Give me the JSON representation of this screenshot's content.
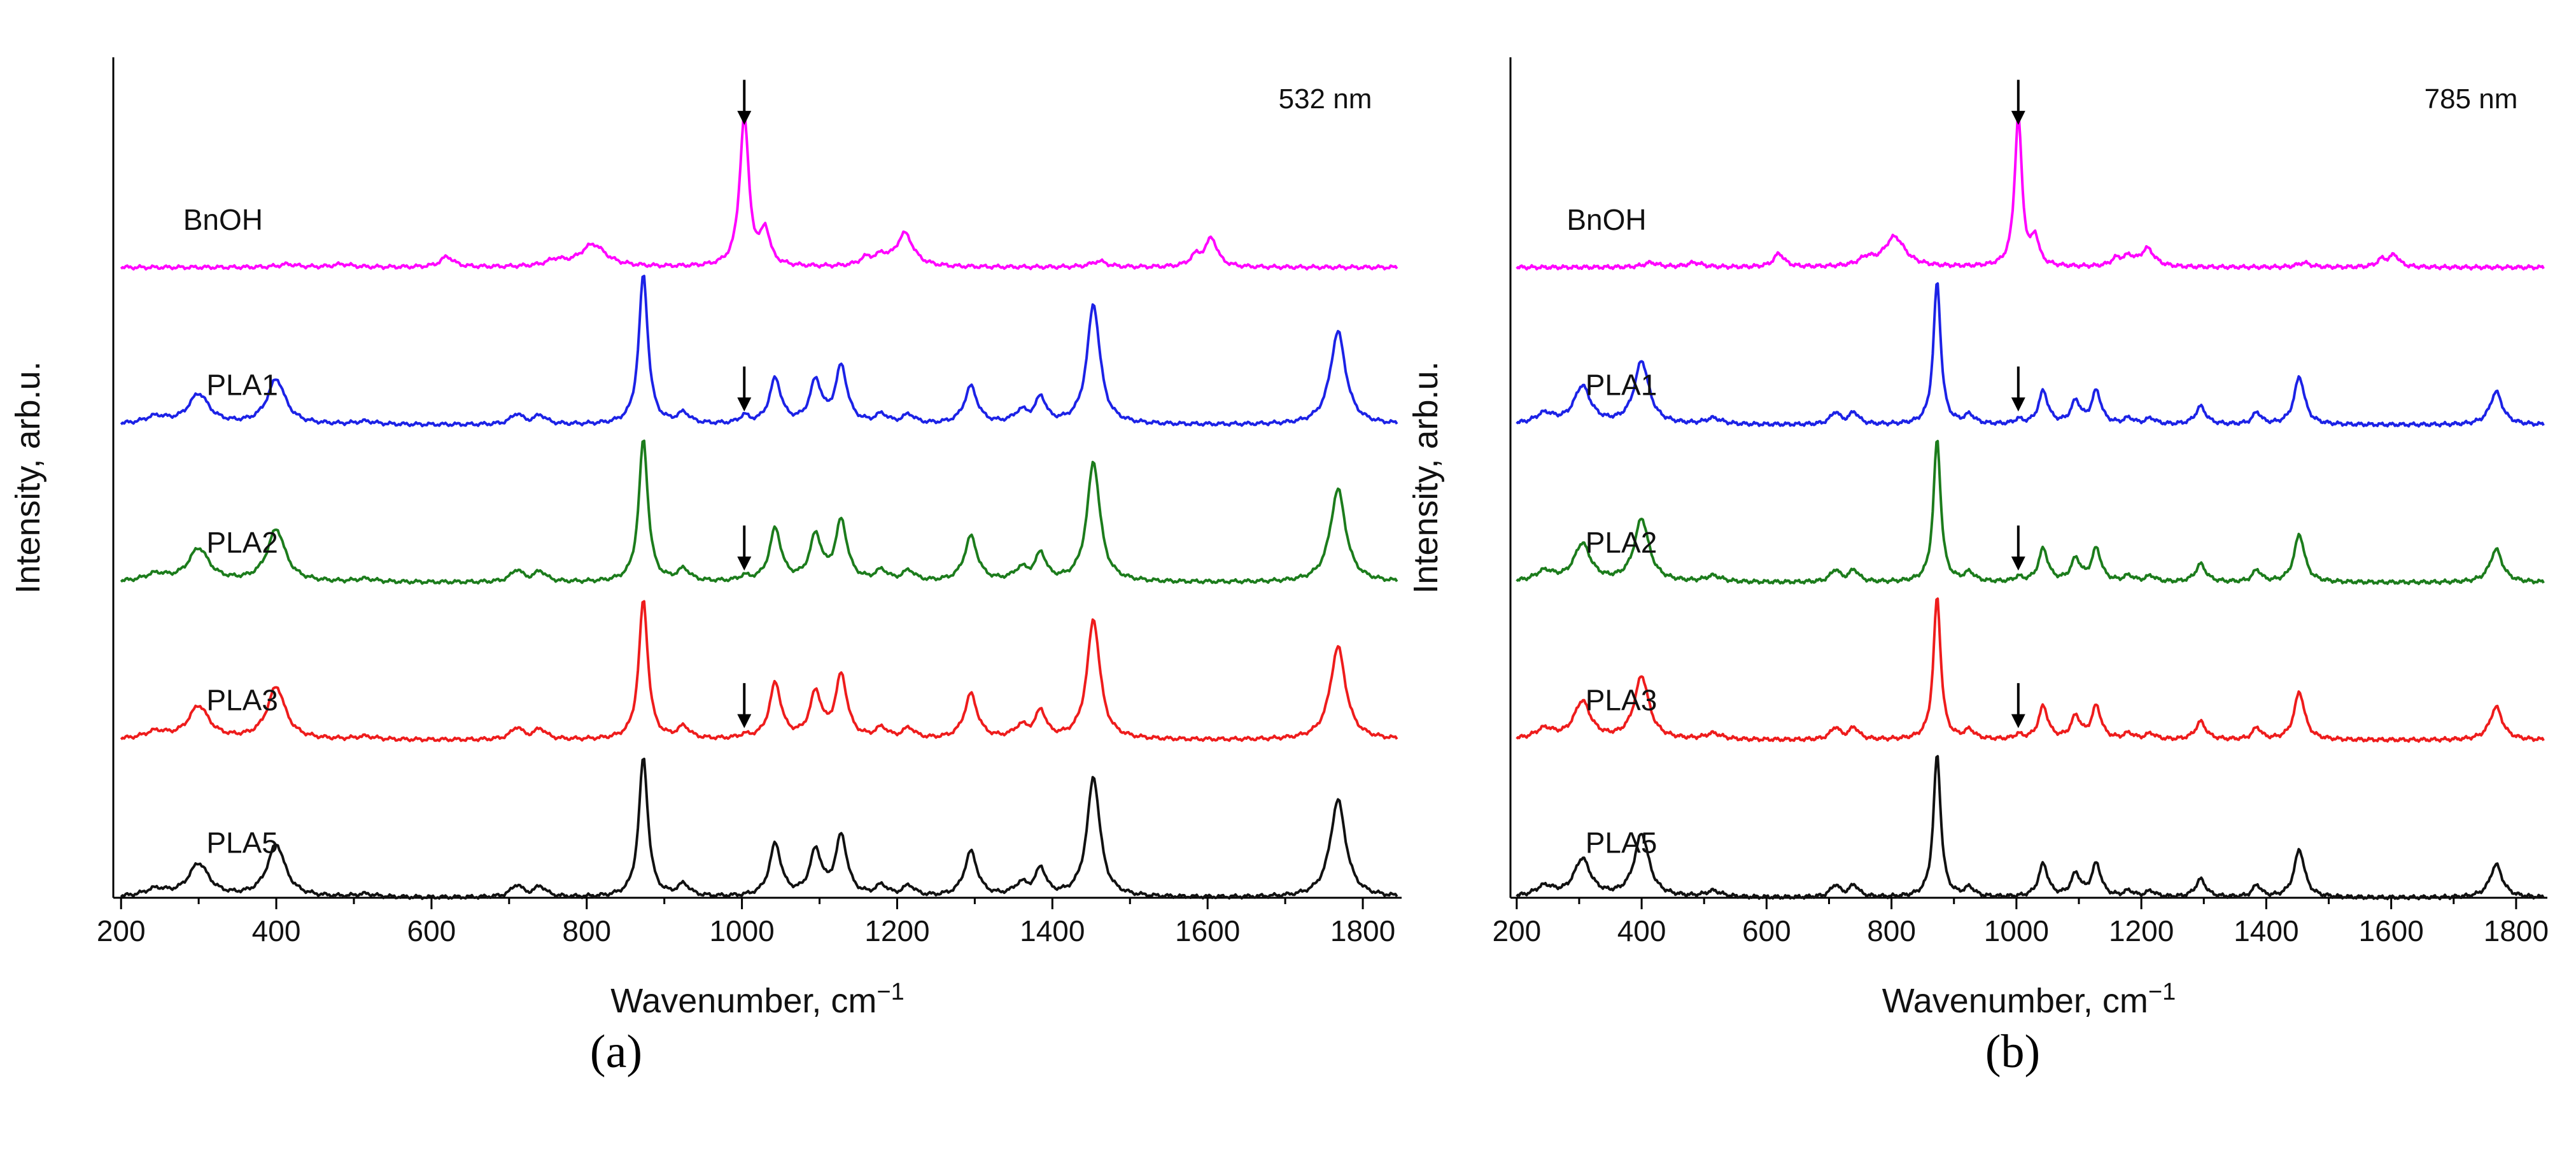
{
  "chart_data": [
    {
      "type": "line",
      "panel": "a",
      "caption": "(a)",
      "annotation": "532 nm",
      "xlabel": "Wavenumber, cm",
      "xlabel_sup": "−1",
      "ylabel": "Intensity, arb.u.",
      "xlim": [
        190,
        1850
      ],
      "ylim": [
        0,
        5.6
      ],
      "xticks": [
        200,
        400,
        600,
        800,
        1000,
        1200,
        1400,
        1600,
        1800
      ],
      "yticks_labeled": false,
      "arrows_at": 1003,
      "series": [
        {
          "name": "BnOH",
          "color": "#ff00ff",
          "offset": 4.2,
          "label_x": 280,
          "label_y": 4.45,
          "arrow": {
            "x": 1003,
            "top": 5.45,
            "bottom": 5.15
          },
          "peaks": [
            [
              415,
              0.02,
              14
            ],
            [
              485,
              0.02,
              14
            ],
            [
              620,
              0.07,
              10
            ],
            [
              760,
              0.04,
              14
            ],
            [
              808,
              0.15,
              20
            ],
            [
              1003,
              1.0,
              7
            ],
            [
              1030,
              0.23,
              7
            ],
            [
              1160,
              0.05,
              10
            ],
            [
              1180,
              0.06,
              10
            ],
            [
              1210,
              0.22,
              13
            ],
            [
              1460,
              0.04,
              12
            ],
            [
              1585,
              0.07,
              9
            ],
            [
              1605,
              0.19,
              9
            ]
          ]
        },
        {
          "name": "PLA1",
          "color": "#1c22e6",
          "offset": 3.15,
          "label_x": 310,
          "label_y": 3.35,
          "arrow": {
            "x": 1003,
            "top": 3.54,
            "bottom": 3.24
          },
          "peaks": [
            [
              245,
              0.05,
              18
            ],
            [
              300,
              0.2,
              16
            ],
            [
              400,
              0.3,
              14
            ],
            [
              515,
              0.02,
              15
            ],
            [
              710,
              0.07,
              9
            ],
            [
              740,
              0.06,
              9
            ],
            [
              873,
              1.0,
              7
            ],
            [
              925,
              0.07,
              9
            ],
            [
              1003,
              0.05,
              7
            ],
            [
              1043,
              0.3,
              9
            ],
            [
              1095,
              0.28,
              9
            ],
            [
              1128,
              0.38,
              9
            ],
            [
              1180,
              0.06,
              9
            ],
            [
              1215,
              0.06,
              9
            ],
            [
              1295,
              0.25,
              10
            ],
            [
              1360,
              0.08,
              11
            ],
            [
              1385,
              0.17,
              8
            ],
            [
              1453,
              0.8,
              10
            ],
            [
              1768,
              0.62,
              12
            ]
          ]
        },
        {
          "name": "PLA2",
          "color": "#1c7c1c",
          "offset": 2.1,
          "label_x": 310,
          "label_y": 2.3,
          "arrow": {
            "x": 1003,
            "top": 2.48,
            "bottom": 2.18
          },
          "peaks": [
            [
              245,
              0.05,
              18
            ],
            [
              300,
              0.22,
              16
            ],
            [
              400,
              0.35,
              14
            ],
            [
              515,
              0.02,
              15
            ],
            [
              710,
              0.08,
              9
            ],
            [
              740,
              0.07,
              9
            ],
            [
              873,
              0.95,
              7
            ],
            [
              925,
              0.08,
              9
            ],
            [
              1003,
              0.03,
              7
            ],
            [
              1043,
              0.35,
              9
            ],
            [
              1095,
              0.3,
              9
            ],
            [
              1128,
              0.4,
              9
            ],
            [
              1180,
              0.07,
              9
            ],
            [
              1215,
              0.07,
              9
            ],
            [
              1295,
              0.3,
              10
            ],
            [
              1360,
              0.08,
              11
            ],
            [
              1385,
              0.18,
              8
            ],
            [
              1453,
              0.8,
              10
            ],
            [
              1768,
              0.62,
              12
            ]
          ]
        },
        {
          "name": "PLA3",
          "color": "#ee1c1c",
          "offset": 1.05,
          "label_x": 310,
          "label_y": 1.25,
          "arrow": {
            "x": 1003,
            "top": 1.43,
            "bottom": 1.13
          },
          "peaks": [
            [
              245,
              0.05,
              18
            ],
            [
              300,
              0.22,
              16
            ],
            [
              400,
              0.35,
              14
            ],
            [
              515,
              0.02,
              15
            ],
            [
              710,
              0.08,
              9
            ],
            [
              740,
              0.07,
              9
            ],
            [
              873,
              0.93,
              7
            ],
            [
              925,
              0.08,
              9
            ],
            [
              1003,
              0.02,
              7
            ],
            [
              1043,
              0.37,
              9
            ],
            [
              1095,
              0.3,
              9
            ],
            [
              1128,
              0.42,
              9
            ],
            [
              1180,
              0.07,
              9
            ],
            [
              1215,
              0.07,
              9
            ],
            [
              1295,
              0.3,
              10
            ],
            [
              1360,
              0.08,
              11
            ],
            [
              1385,
              0.18,
              8
            ],
            [
              1453,
              0.8,
              10
            ],
            [
              1768,
              0.62,
              12
            ]
          ]
        },
        {
          "name": "PLA5",
          "color": "#111111",
          "offset": 0.0,
          "label_x": 310,
          "label_y": 0.3,
          "peaks": [
            [
              245,
              0.05,
              18
            ],
            [
              300,
              0.22,
              16
            ],
            [
              400,
              0.35,
              14
            ],
            [
              515,
              0.02,
              15
            ],
            [
              710,
              0.08,
              9
            ],
            [
              740,
              0.07,
              9
            ],
            [
              873,
              0.93,
              7
            ],
            [
              925,
              0.08,
              9
            ],
            [
              1043,
              0.35,
              9
            ],
            [
              1095,
              0.3,
              9
            ],
            [
              1128,
              0.4,
              9
            ],
            [
              1180,
              0.07,
              9
            ],
            [
              1215,
              0.07,
              9
            ],
            [
              1295,
              0.3,
              10
            ],
            [
              1360,
              0.08,
              11
            ],
            [
              1385,
              0.18,
              8
            ],
            [
              1453,
              0.8,
              10
            ],
            [
              1768,
              0.65,
              12
            ]
          ]
        }
      ]
    },
    {
      "type": "line",
      "panel": "b",
      "caption": "(b)",
      "annotation": "785 nm",
      "xlabel": "Wavenumber, cm",
      "xlabel_sup": "−1",
      "ylabel": "Intensity, arb.u.",
      "xlim": [
        190,
        1850
      ],
      "ylim": [
        0,
        5.6
      ],
      "xticks": [
        200,
        400,
        600,
        800,
        1000,
        1200,
        1400,
        1600,
        1800
      ],
      "yticks_labeled": false,
      "arrows_at": 1003,
      "series": [
        {
          "name": "BnOH",
          "color": "#ff00ff",
          "offset": 4.2,
          "label_x": 280,
          "label_y": 4.45,
          "arrow": {
            "x": 1003,
            "top": 5.45,
            "bottom": 5.15
          },
          "peaks": [
            [
              415,
              0.03,
              14
            ],
            [
              485,
              0.03,
              14
            ],
            [
              620,
              0.09,
              10
            ],
            [
              760,
              0.05,
              14
            ],
            [
              805,
              0.2,
              20
            ],
            [
              1003,
              1.0,
              7
            ],
            [
              1030,
              0.18,
              7
            ],
            [
              1160,
              0.05,
              10
            ],
            [
              1180,
              0.06,
              10
            ],
            [
              1210,
              0.12,
              13
            ],
            [
              1460,
              0.03,
              12
            ],
            [
              1585,
              0.05,
              9
            ],
            [
              1605,
              0.08,
              9
            ]
          ]
        },
        {
          "name": "PLA1",
          "color": "#1c22e6",
          "offset": 3.15,
          "label_x": 310,
          "label_y": 3.35,
          "arrow": {
            "x": 1003,
            "top": 3.54,
            "bottom": 3.24
          },
          "peaks": [
            [
              245,
              0.07,
              18
            ],
            [
              305,
              0.25,
              16
            ],
            [
              400,
              0.42,
              14
            ],
            [
              515,
              0.04,
              15
            ],
            [
              710,
              0.08,
              9
            ],
            [
              740,
              0.08,
              9
            ],
            [
              873,
              0.95,
              7
            ],
            [
              925,
              0.06,
              9
            ],
            [
              1003,
              0.03,
              7
            ],
            [
              1043,
              0.22,
              9
            ],
            [
              1095,
              0.15,
              9
            ],
            [
              1128,
              0.22,
              9
            ],
            [
              1180,
              0.04,
              9
            ],
            [
              1215,
              0.04,
              9
            ],
            [
              1295,
              0.12,
              10
            ],
            [
              1385,
              0.08,
              8
            ],
            [
              1453,
              0.32,
              10
            ],
            [
              1768,
              0.22,
              12
            ]
          ]
        },
        {
          "name": "PLA2",
          "color": "#1c7c1c",
          "offset": 2.1,
          "label_x": 310,
          "label_y": 2.3,
          "arrow": {
            "x": 1003,
            "top": 2.48,
            "bottom": 2.18
          },
          "peaks": [
            [
              245,
              0.07,
              18
            ],
            [
              305,
              0.25,
              16
            ],
            [
              400,
              0.42,
              14
            ],
            [
              515,
              0.04,
              15
            ],
            [
              710,
              0.08,
              9
            ],
            [
              740,
              0.08,
              9
            ],
            [
              873,
              0.95,
              7
            ],
            [
              925,
              0.06,
              9
            ],
            [
              1003,
              0.03,
              7
            ],
            [
              1043,
              0.22,
              9
            ],
            [
              1095,
              0.15,
              9
            ],
            [
              1128,
              0.22,
              9
            ],
            [
              1180,
              0.04,
              9
            ],
            [
              1215,
              0.04,
              9
            ],
            [
              1295,
              0.12,
              10
            ],
            [
              1385,
              0.08,
              8
            ],
            [
              1453,
              0.32,
              10
            ],
            [
              1768,
              0.22,
              12
            ]
          ]
        },
        {
          "name": "PLA3",
          "color": "#ee1c1c",
          "offset": 1.05,
          "label_x": 310,
          "label_y": 1.25,
          "arrow": {
            "x": 1003,
            "top": 1.43,
            "bottom": 1.13
          },
          "peaks": [
            [
              245,
              0.07,
              18
            ],
            [
              305,
              0.25,
              16
            ],
            [
              400,
              0.42,
              14
            ],
            [
              515,
              0.04,
              15
            ],
            [
              710,
              0.08,
              9
            ],
            [
              740,
              0.08,
              9
            ],
            [
              873,
              0.95,
              7
            ],
            [
              925,
              0.06,
              9
            ],
            [
              1003,
              0.03,
              7
            ],
            [
              1043,
              0.22,
              9
            ],
            [
              1095,
              0.15,
              9
            ],
            [
              1128,
              0.22,
              9
            ],
            [
              1180,
              0.04,
              9
            ],
            [
              1215,
              0.04,
              9
            ],
            [
              1295,
              0.12,
              10
            ],
            [
              1385,
              0.08,
              8
            ],
            [
              1453,
              0.32,
              10
            ],
            [
              1768,
              0.22,
              12
            ]
          ]
        },
        {
          "name": "PLA5",
          "color": "#111111",
          "offset": 0.0,
          "label_x": 310,
          "label_y": 0.3,
          "peaks": [
            [
              245,
              0.07,
              18
            ],
            [
              305,
              0.25,
              16
            ],
            [
              400,
              0.42,
              14
            ],
            [
              515,
              0.04,
              15
            ],
            [
              710,
              0.08,
              9
            ],
            [
              740,
              0.08,
              9
            ],
            [
              873,
              0.95,
              7
            ],
            [
              925,
              0.06,
              9
            ],
            [
              1043,
              0.22,
              9
            ],
            [
              1095,
              0.15,
              9
            ],
            [
              1128,
              0.22,
              9
            ],
            [
              1180,
              0.04,
              9
            ],
            [
              1215,
              0.04,
              9
            ],
            [
              1295,
              0.12,
              10
            ],
            [
              1385,
              0.08,
              8
            ],
            [
              1453,
              0.32,
              10
            ],
            [
              1768,
              0.22,
              12
            ]
          ]
        }
      ]
    }
  ]
}
